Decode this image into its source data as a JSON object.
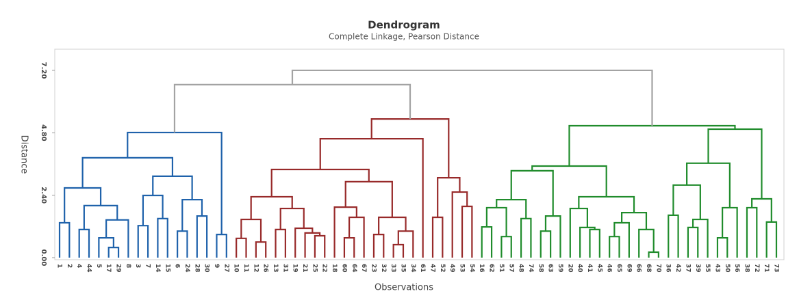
{
  "chart_data": {
    "type": "dendrogram",
    "title": "Dendrogram",
    "subtitle": "Complete Linkage, Pearson Distance",
    "x_label": "Observations",
    "y_label": "Distance",
    "ylim": [
      0,
      8
    ],
    "yticks": [
      {
        "value": 0,
        "label": "0.00"
      },
      {
        "value": 2.4,
        "label": "2.40"
      },
      {
        "value": 4.8,
        "label": "4.80"
      },
      {
        "value": 7.2,
        "label": "7.20"
      }
    ],
    "grid": false,
    "leaves": [
      "1",
      "2",
      "4",
      "44",
      "5",
      "17",
      "29",
      "8",
      "3",
      "7",
      "14",
      "15",
      "6",
      "24",
      "28",
      "30",
      "9",
      "27",
      "10",
      "11",
      "12",
      "26",
      "13",
      "31",
      "19",
      "21",
      "25",
      "22",
      "18",
      "60",
      "64",
      "67",
      "23",
      "32",
      "33",
      "35",
      "34",
      "61",
      "47",
      "52",
      "49",
      "53",
      "54",
      "16",
      "62",
      "51",
      "57",
      "48",
      "74",
      "58",
      "63",
      "59",
      "20",
      "40",
      "41",
      "45",
      "46",
      "65",
      "69",
      "66",
      "68",
      "70",
      "36",
      "42",
      "37",
      "39",
      "55",
      "43",
      "50",
      "56",
      "38",
      "72",
      "71",
      "73"
    ],
    "merges": [
      [
        0,
        1,
        1.34
      ],
      [
        2,
        3,
        1.08
      ],
      [
        5,
        6,
        0.39
      ],
      [
        4,
        76,
        0.76
      ],
      [
        77,
        7,
        1.45
      ],
      [
        75,
        78,
        2.0
      ],
      [
        74,
        79,
        2.68
      ],
      [
        8,
        9,
        1.23
      ],
      [
        10,
        11,
        1.5
      ],
      [
        81,
        82,
        2.39
      ],
      [
        12,
        13,
        1.02
      ],
      [
        14,
        15,
        1.6
      ],
      [
        84,
        85,
        2.23
      ],
      [
        83,
        86,
        3.13
      ],
      [
        80,
        87,
        3.84
      ],
      [
        16,
        17,
        0.89
      ],
      [
        88,
        89,
        4.81
      ],
      [
        18,
        19,
        0.74
      ],
      [
        20,
        21,
        0.6
      ],
      [
        91,
        92,
        1.47
      ],
      [
        22,
        23,
        1.08
      ],
      [
        26,
        27,
        0.84
      ],
      [
        25,
        95,
        0.95
      ],
      [
        24,
        96,
        1.13
      ],
      [
        94,
        97,
        1.89
      ],
      [
        93,
        98,
        2.34
      ],
      [
        29,
        30,
        0.76
      ],
      [
        100,
        31,
        1.55
      ],
      [
        28,
        101,
        1.94
      ],
      [
        32,
        33,
        0.89
      ],
      [
        34,
        35,
        0.5
      ],
      [
        104,
        36,
        1.02
      ],
      [
        103,
        105,
        1.55
      ],
      [
        102,
        106,
        2.92
      ],
      [
        99,
        107,
        3.39
      ],
      [
        108,
        37,
        4.57
      ],
      [
        38,
        39,
        1.55
      ],
      [
        41,
        42,
        1.97
      ],
      [
        40,
        111,
        2.52
      ],
      [
        110,
        112,
        3.07
      ],
      [
        109,
        113,
        5.33
      ],
      [
        43,
        44,
        1.18
      ],
      [
        45,
        46,
        0.81
      ],
      [
        115,
        116,
        1.92
      ],
      [
        47,
        48,
        1.5
      ],
      [
        117,
        118,
        2.23
      ],
      [
        49,
        50,
        1.02
      ],
      [
        120,
        51,
        1.6
      ],
      [
        119,
        121,
        3.34
      ],
      [
        54,
        55,
        1.08
      ],
      [
        53,
        123,
        1.16
      ],
      [
        52,
        124,
        1.89
      ],
      [
        56,
        57,
        0.81
      ],
      [
        126,
        58,
        1.34
      ],
      [
        60,
        61,
        0.21
      ],
      [
        59,
        128,
        1.08
      ],
      [
        127,
        129,
        1.73
      ],
      [
        125,
        130,
        2.34
      ],
      [
        122,
        131,
        3.52
      ],
      [
        62,
        63,
        1.63
      ],
      [
        64,
        65,
        1.16
      ],
      [
        134,
        66,
        1.47
      ],
      [
        133,
        135,
        2.79
      ],
      [
        67,
        68,
        0.76
      ],
      [
        137,
        69,
        1.92
      ],
      [
        136,
        138,
        3.63
      ],
      [
        70,
        71,
        1.92
      ],
      [
        72,
        73,
        1.37
      ],
      [
        140,
        141,
        2.26
      ],
      [
        139,
        142,
        4.94
      ],
      [
        132,
        143,
        5.07
      ],
      [
        90,
        114,
        6.65
      ],
      [
        145,
        144,
        7.2
      ]
    ],
    "clusters": [
      {
        "color": "#1f62ab",
        "first": 0,
        "last": 17
      },
      {
        "color": "#982a2a",
        "first": 18,
        "last": 42
      },
      {
        "color": "#208c2c",
        "first": 43,
        "last": 73
      }
    ],
    "link_color": "#a3a3a3"
  }
}
